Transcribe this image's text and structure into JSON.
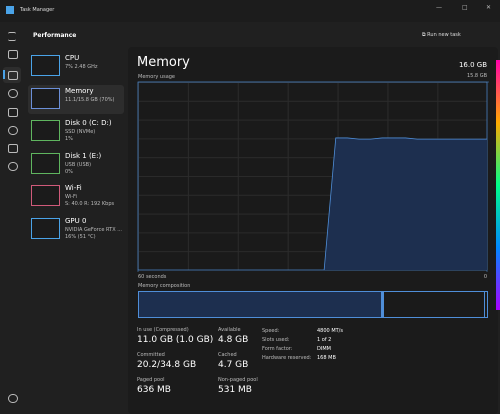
{
  "window_title": "Task Manager",
  "header": {
    "title": "Performance",
    "action": "Run new task"
  },
  "sidebar": [
    {
      "name": "CPU",
      "line1": "7% 2.48 GHz"
    },
    {
      "name": "Memory",
      "line1": "11.1/15.8 GB (70%)"
    },
    {
      "name": "Disk 0 (C: D:)",
      "line1": "SSD (NVMe)",
      "line2": "1%"
    },
    {
      "name": "Disk 1 (E:)",
      "line1": "USB (USB)",
      "line2": "0%"
    },
    {
      "name": "Wi-Fi",
      "line1": "Wi-Fi",
      "line2": "S: 40.0 R: 192 Kbps"
    },
    {
      "name": "GPU 0",
      "line1": "NVIDIA GeForce RTX ...",
      "line2": "16% (51 °C)"
    }
  ],
  "panel": {
    "title": "Memory",
    "total": "16.0 GB",
    "composition_label": "Memory composition"
  },
  "chart_data": {
    "type": "line",
    "title": "Memory usage",
    "color": "#4f8ed8",
    "x": [
      60,
      58,
      56,
      54,
      52,
      50,
      48,
      46,
      44,
      42,
      40,
      38,
      36,
      34,
      32,
      30,
      28,
      26,
      24,
      22,
      20,
      18,
      16,
      14,
      12,
      10,
      8,
      6,
      4,
      2,
      0
    ],
    "values": [
      null,
      null,
      null,
      null,
      null,
      null,
      null,
      null,
      null,
      null,
      null,
      null,
      null,
      null,
      null,
      null,
      0,
      11.1,
      11.1,
      11.0,
      11.0,
      11.1,
      11.1,
      11.1,
      11.0,
      11.0,
      11.0,
      11.0,
      11.0,
      11.0,
      11.0
    ],
    "xlim": [
      60,
      0
    ],
    "xticks": [
      {
        "value": 60,
        "label": "60 seconds"
      },
      0
    ],
    "ylim": [
      0,
      15.8
    ],
    "yticks": [
      {
        "value": 15.8,
        "label": "15.8 GB"
      }
    ]
  },
  "stats": [
    {
      "label": "In use (Compressed)",
      "value": "11.0 GB (1.0 GB)"
    },
    {
      "label": "Available",
      "value": "4.8 GB"
    },
    {
      "label": "Committed",
      "value": "20.2/34.8 GB"
    },
    {
      "label": "Cached",
      "value": "4.7 GB"
    },
    {
      "label": "Paged pool",
      "value": "636 MB"
    },
    {
      "label": "Non-paged pool",
      "value": "531 MB"
    }
  ],
  "specs": [
    {
      "label": "Speed:",
      "value": "4800 MT/s"
    },
    {
      "label": "Slots used:",
      "value": "1 of 2"
    },
    {
      "label": "Form factor:",
      "value": "DIMM"
    },
    {
      "label": "Hardware reserved:",
      "value": "168 MB"
    }
  ]
}
